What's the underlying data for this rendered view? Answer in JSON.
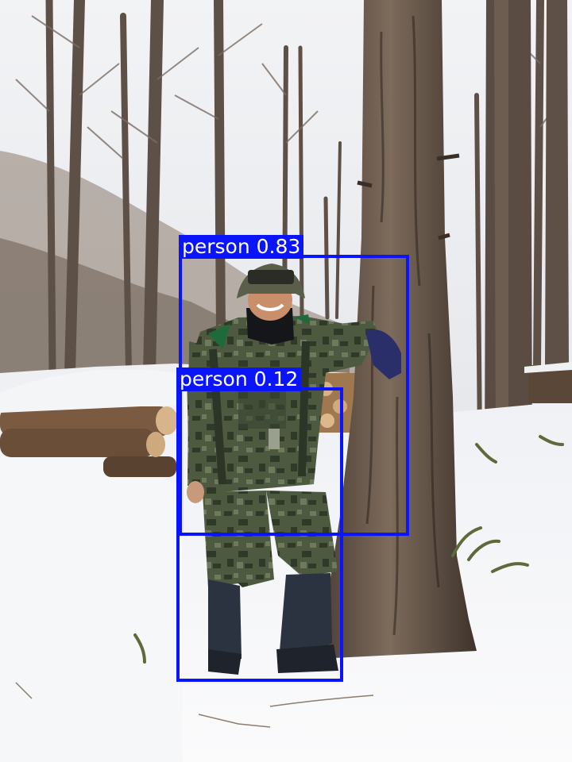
{
  "image": {
    "subject": "soldier-in-camouflage-leaning-on-tree",
    "setting": "snowy-larch-forest"
  },
  "detections": [
    {
      "class": "person",
      "confidence": "0.83",
      "color": "#0a14ff"
    },
    {
      "class": "person",
      "confidence": "0.12",
      "color": "#0a14ff"
    }
  ]
}
